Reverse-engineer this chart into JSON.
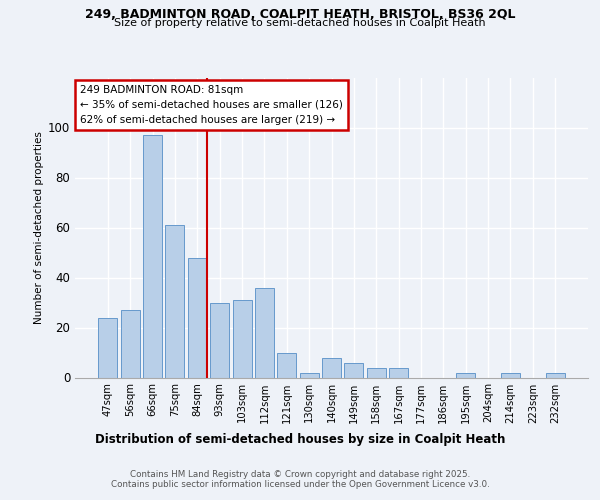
{
  "title1": "249, BADMINTON ROAD, COALPIT HEATH, BRISTOL, BS36 2QL",
  "title2": "Size of property relative to semi-detached houses in Coalpit Heath",
  "xlabel": "Distribution of semi-detached houses by size in Coalpit Heath",
  "ylabel": "Number of semi-detached properties",
  "categories": [
    "47sqm",
    "56sqm",
    "66sqm",
    "75sqm",
    "84sqm",
    "93sqm",
    "103sqm",
    "112sqm",
    "121sqm",
    "130sqm",
    "140sqm",
    "149sqm",
    "158sqm",
    "167sqm",
    "177sqm",
    "186sqm",
    "195sqm",
    "204sqm",
    "214sqm",
    "223sqm",
    "232sqm"
  ],
  "values": [
    24,
    27,
    97,
    61,
    48,
    30,
    31,
    36,
    10,
    2,
    8,
    6,
    4,
    4,
    0,
    0,
    2,
    0,
    2,
    0,
    2
  ],
  "bar_color": "#b8cfe8",
  "bar_edge_color": "#6699cc",
  "vline_color": "#cc0000",
  "annotation_title": "249 BADMINTON ROAD: 81sqm",
  "annotation_line1": "← 35% of semi-detached houses are smaller (126)",
  "annotation_line2": "62% of semi-detached houses are larger (219) →",
  "annotation_box_color": "#cc0000",
  "ylim": [
    0,
    120
  ],
  "yticks": [
    0,
    20,
    40,
    60,
    80,
    100
  ],
  "footer1": "Contains HM Land Registry data © Crown copyright and database right 2025.",
  "footer2": "Contains public sector information licensed under the Open Government Licence v3.0.",
  "bg_color": "#eef2f8",
  "grid_color": "#ffffff"
}
